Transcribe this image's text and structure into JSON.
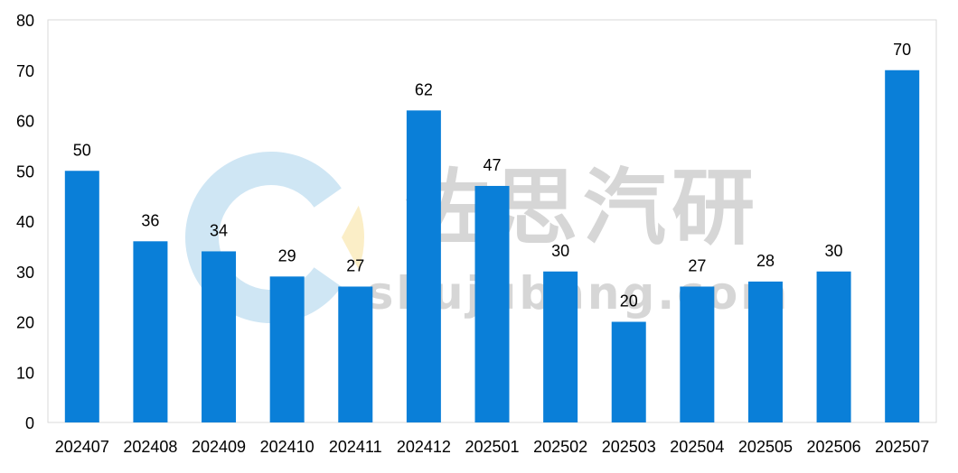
{
  "chart_data": {
    "type": "bar",
    "categories": [
      "202407",
      "202408",
      "202409",
      "202410",
      "202411",
      "202412",
      "202501",
      "202502",
      "202503",
      "202504",
      "202505",
      "202506",
      "202507"
    ],
    "values": [
      50,
      36,
      34,
      29,
      27,
      62,
      47,
      30,
      20,
      27,
      28,
      30,
      70
    ],
    "ylim": [
      0,
      80
    ],
    "yticks": [
      0,
      10,
      20,
      30,
      40,
      50,
      60,
      70,
      80
    ],
    "data_labels": true,
    "grid": false,
    "colors": {
      "bar": "#0a7fd8",
      "plot_border": "#d9d9d9"
    }
  },
  "watermark": {
    "title": "佐思汽研",
    "site": "shujubang.com",
    "colors": {
      "ring": "#cfe6f4",
      "wedge": "#fbeec7",
      "text": "#c9c9c9"
    }
  }
}
